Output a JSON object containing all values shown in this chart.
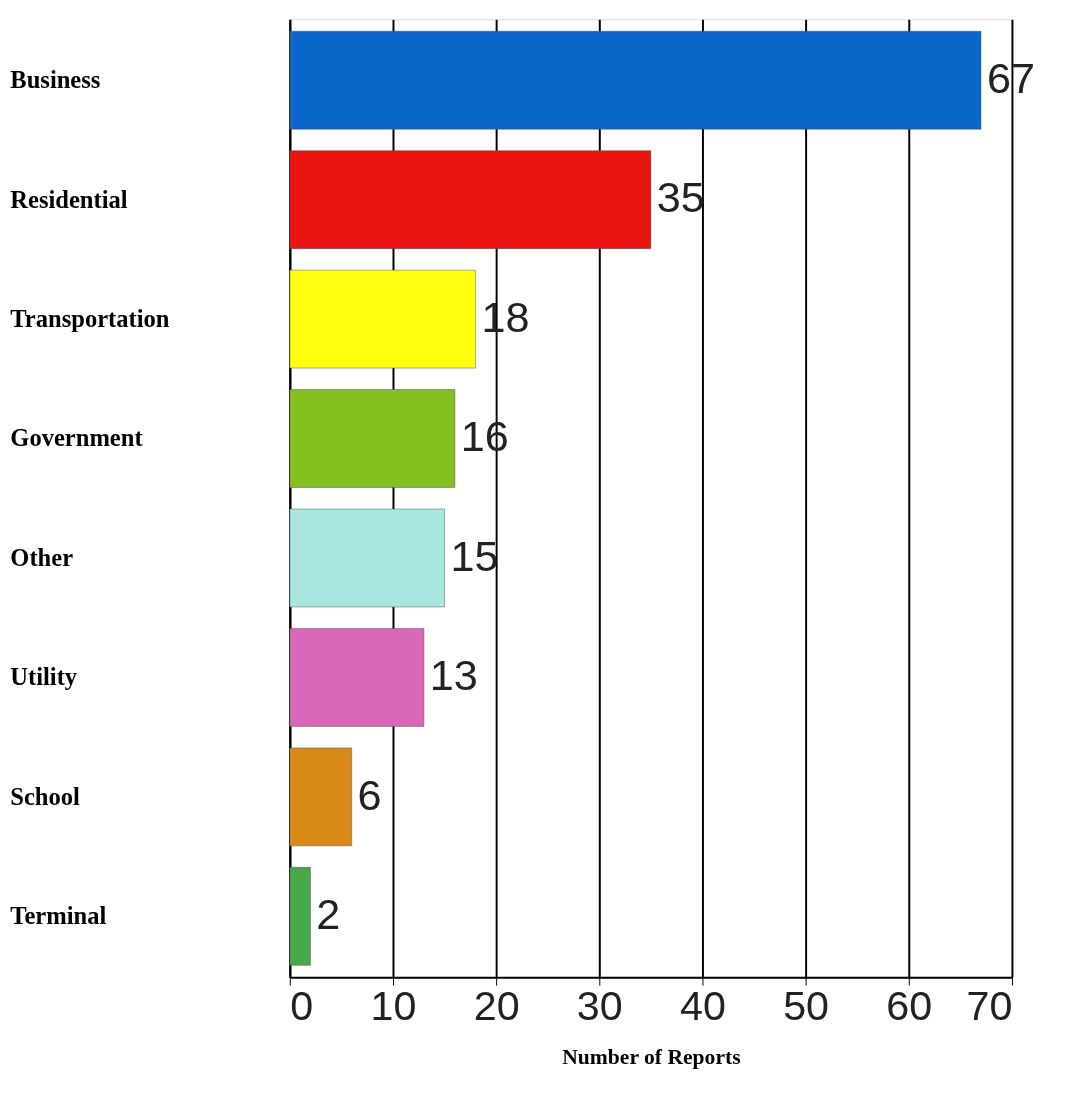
{
  "chart_data": {
    "type": "bar",
    "orientation": "horizontal",
    "xlabel": "Number of Reports",
    "categories": [
      "Business",
      "Residential",
      "Transportation",
      "Government",
      "Other",
      "Utility",
      "School",
      "Terminal"
    ],
    "values": [
      67,
      35,
      18,
      16,
      15,
      13,
      6,
      2
    ],
    "colors": [
      "#0a66c8",
      "#e81410",
      "#ffff10",
      "#84c020",
      "#a8e6e0",
      "#d868b8",
      "#d88a18",
      "#48a848"
    ],
    "xlim": [
      0,
      70
    ],
    "xticks": [
      0,
      10,
      20,
      30,
      40,
      50,
      60,
      70
    ],
    "grid": "x",
    "data_labels": true
  }
}
